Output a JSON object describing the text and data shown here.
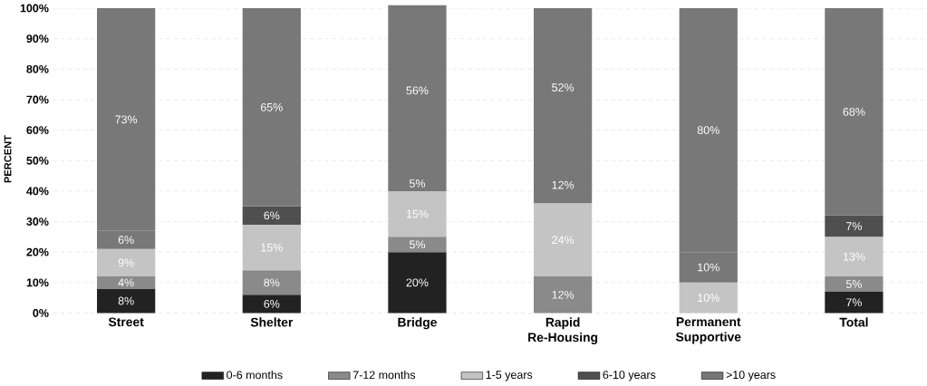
{
  "chart_data": {
    "type": "bar",
    "stacked": true,
    "ylabel": "PERCENT",
    "categories": [
      "Street",
      "Shelter",
      "Bridge",
      "Rapid Re-Housing",
      "Permanent Supportive",
      "Total"
    ],
    "series": [
      {
        "name": "0-6 months",
        "color": "#222222",
        "values": [
          8,
          6,
          20,
          null,
          null,
          7
        ],
        "value_labels": [
          "8%",
          "6%",
          "20%",
          null,
          null,
          "7%"
        ]
      },
      {
        "name": "7-12 months",
        "color": "#8a8a8a",
        "values": [
          4,
          8,
          5,
          12,
          null,
          5
        ],
        "value_labels": [
          "4%",
          "8%",
          "5%",
          "12%",
          null,
          "5%"
        ]
      },
      {
        "name": "1-5 years",
        "color": "#c4c4c4",
        "values": [
          9,
          15,
          15,
          24,
          10,
          13
        ],
        "value_labels": [
          "9%",
          "15%",
          "15%",
          "24%",
          "10%",
          "13%"
        ]
      },
      {
        "name": "6-10 years",
        "color": "#4f4f4f",
        "colors": [
          "#787878",
          "#4f4f4f",
          "#787878",
          "#787878",
          "#787878",
          "#4f4f4f"
        ],
        "values": [
          6,
          6,
          5,
          12,
          10,
          7
        ],
        "value_labels": [
          "6%",
          "6%",
          "5%",
          "12%",
          "10%",
          "7%"
        ]
      },
      {
        "name": ">10 years",
        "color": "#787878",
        "values": [
          73,
          65,
          56,
          52,
          80,
          68
        ],
        "value_labels": [
          "73%",
          "65%",
          "56%",
          "52%",
          "80%",
          "68%"
        ]
      }
    ],
    "ylim": [
      0,
      101
    ],
    "yticks": [
      {
        "value": 0,
        "label": "0%"
      },
      {
        "value": 10,
        "label": "10%"
      },
      {
        "value": 20,
        "label": "20%"
      },
      {
        "value": 30,
        "label": "30%"
      },
      {
        "value": 40,
        "label": "40%"
      },
      {
        "value": 50,
        "label": "50%"
      },
      {
        "value": 60,
        "label": "60%"
      },
      {
        "value": 70,
        "label": "70%"
      },
      {
        "value": 80,
        "label": "80%"
      },
      {
        "value": 90,
        "label": "90%"
      },
      {
        "value": 100,
        "label": "100%"
      }
    ],
    "grid": "y",
    "legend": "bottom"
  }
}
